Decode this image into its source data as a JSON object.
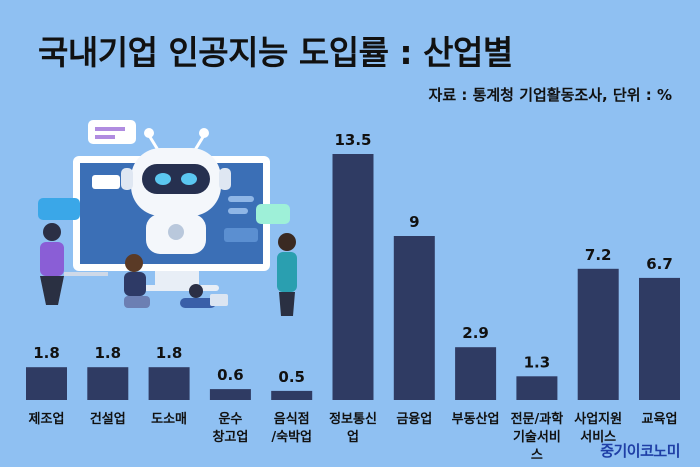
{
  "header": {
    "title": "국내기업 인공지능 도입률 : 산업별",
    "source": "자료 : 통계청 기업활동조사, 단위 : %"
  },
  "brand": {
    "logo_text": "중기이코노미"
  },
  "colors": {
    "background": "#8fc0f2",
    "bar": "#2f3b63",
    "text": "#111111"
  },
  "illustration": {
    "subject": "robot-and-people-illustration"
  },
  "chart_data": {
    "type": "bar",
    "title": "국내기업 인공지능 도입률 : 산업별",
    "unit": "%",
    "categories": [
      "제조업",
      "건설업",
      "도소매",
      "운수 창고업",
      "음식점 /숙박업",
      "정보통신업",
      "금융업",
      "부동산업",
      "전문/과학 기술서비스",
      "사업지원 서비스",
      "교육업"
    ],
    "category_lines": [
      [
        "제조업"
      ],
      [
        "건설업"
      ],
      [
        "도소매"
      ],
      [
        "운수",
        "창고업"
      ],
      [
        "음식점",
        "/숙박업"
      ],
      [
        "정보통신",
        "업"
      ],
      [
        "금융업"
      ],
      [
        "부동산업"
      ],
      [
        "전문/과학",
        "기술서비",
        "스"
      ],
      [
        "사업지원",
        "서비스"
      ],
      [
        "교육업"
      ]
    ],
    "value_labels": [
      "1.8",
      "1.8",
      "1.8",
      "0.6",
      "0.5",
      "13.5",
      "9",
      "2.9",
      "1.3",
      "7.2",
      "6.7"
    ],
    "values": [
      1.8,
      1.8,
      1.8,
      0.6,
      0.5,
      13.5,
      9,
      2.9,
      1.3,
      7.2,
      6.7
    ],
    "ylim": [
      0,
      13.5
    ],
    "grid": false,
    "legend": "none"
  }
}
